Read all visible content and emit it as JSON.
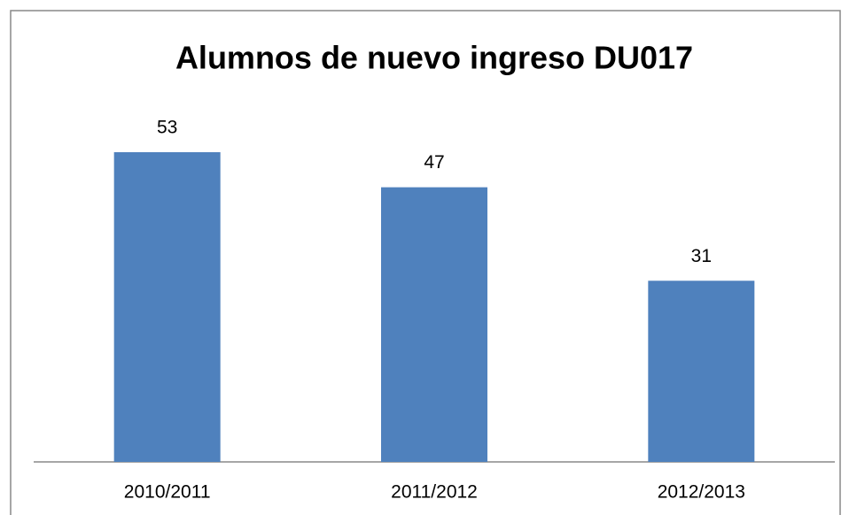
{
  "chart_data": {
    "type": "bar",
    "title": "Alumnos de nuevo ingreso DU017",
    "categories": [
      "2010/2011",
      "2011/2012",
      "2012/2013"
    ],
    "values": [
      53,
      47,
      31
    ],
    "color": "#4f81bd"
  }
}
